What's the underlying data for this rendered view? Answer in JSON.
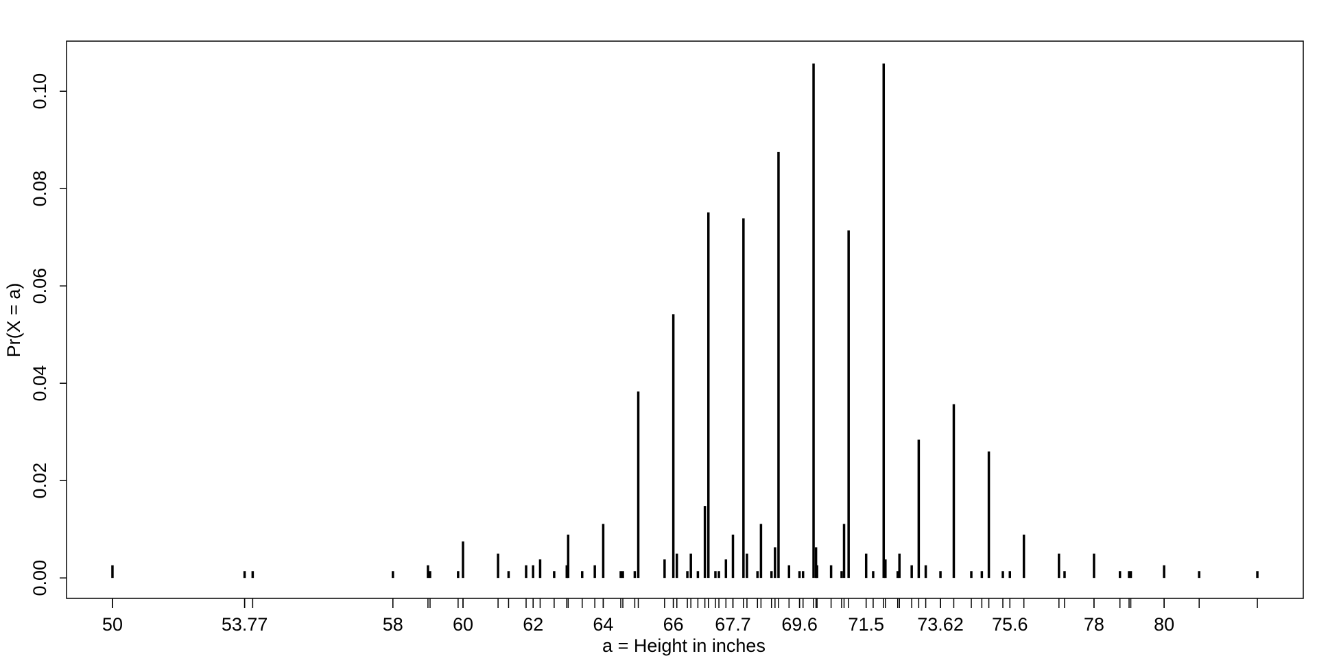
{
  "chart_data": {
    "type": "stem",
    "x_label": "a = Height in inches",
    "y_label": "Pr(X = a)",
    "color": "#000000",
    "x": [
      50,
      53.77,
      54,
      58,
      59,
      59.06,
      59.86,
      60,
      61,
      61.3,
      61.8,
      62,
      62.2,
      62.6,
      62.96,
      63,
      63.4,
      63.76,
      64,
      64.5,
      64.56,
      64.9,
      65,
      65.75,
      66,
      66.1,
      66.4,
      66.5,
      66.7,
      66.9,
      67,
      67.2,
      67.3,
      67.5,
      67.7,
      68,
      68.1,
      68.4,
      68.5,
      68.8,
      68.9,
      69,
      69.3,
      69.6,
      69.7,
      70,
      70.07,
      70.1,
      70.5,
      70.8,
      70.87,
      71,
      71.5,
      71.7,
      72,
      72.05,
      72.4,
      72.45,
      72.8,
      73,
      73.2,
      73.62,
      74,
      74.5,
      74.8,
      75,
      75.4,
      75.6,
      76,
      77,
      77.16,
      78,
      78.74,
      79,
      79.05,
      80,
      81,
      82.66
    ],
    "values": [
      0.0026,
      0.0014,
      0.0014,
      0.0014,
      0.0026,
      0.0014,
      0.0014,
      0.0075,
      0.005,
      0.0014,
      0.0026,
      0.0026,
      0.0038,
      0.0014,
      0.0026,
      0.0089,
      0.0014,
      0.0026,
      0.0111,
      0.0014,
      0.0014,
      0.0014,
      0.0383,
      0.0038,
      0.0542,
      0.005,
      0.0014,
      0.005,
      0.0014,
      0.0148,
      0.0751,
      0.0014,
      0.0014,
      0.0038,
      0.0089,
      0.0739,
      0.005,
      0.0014,
      0.0111,
      0.0014,
      0.0063,
      0.0875,
      0.0026,
      0.0014,
      0.0014,
      0.1057,
      0.0063,
      0.0026,
      0.0026,
      0.0014,
      0.0111,
      0.0714,
      0.005,
      0.0014,
      0.1057,
      0.0038,
      0.0014,
      0.005,
      0.0026,
      0.0284,
      0.0026,
      0.0014,
      0.0357,
      0.0014,
      0.0014,
      0.026,
      0.0014,
      0.0014,
      0.0089,
      0.005,
      0.0014,
      0.005,
      0.0014,
      0.0014,
      0.0014,
      0.0026,
      0.0014,
      0.0014
    ],
    "xlim": [
      48.69,
      83.97
    ],
    "ylim": [
      -0.0042,
      0.1103
    ],
    "xticks": [
      50,
      53.77,
      58,
      60,
      62,
      64,
      66,
      67.7,
      69.6,
      71.5,
      73.62,
      75.6,
      78,
      80
    ],
    "yticks": [
      {
        "value": 0,
        "label": "0.00"
      },
      {
        "value": 0.02,
        "label": "0.02"
      },
      {
        "value": 0.04,
        "label": "0.04"
      },
      {
        "value": 0.06,
        "label": "0.06"
      },
      {
        "value": 0.08,
        "label": "0.08"
      },
      {
        "value": 0.1,
        "label": "0.10"
      }
    ]
  }
}
